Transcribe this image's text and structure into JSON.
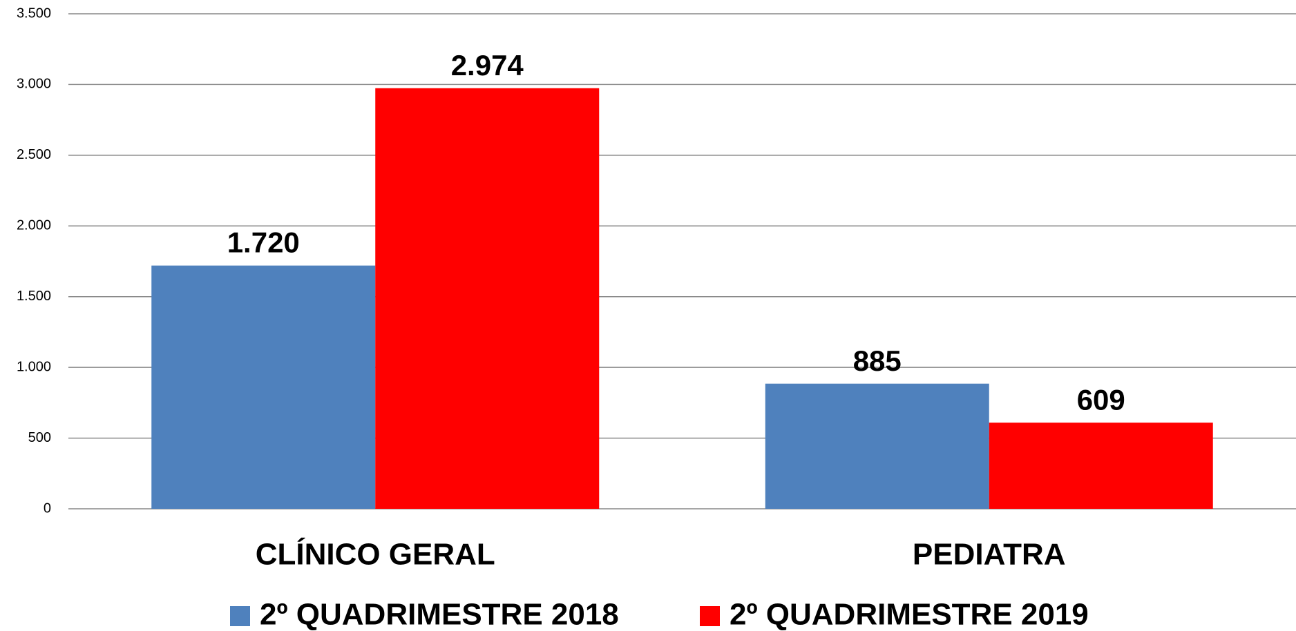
{
  "chart_data": {
    "type": "bar",
    "categories": [
      "CLÍNICO GERAL",
      "PEDIATRA"
    ],
    "series": [
      {
        "name": "2º QUADRIMESTRE 2018",
        "color": "#4f81bd",
        "values": [
          1720,
          885
        ],
        "value_labels": [
          "1.720",
          "885"
        ]
      },
      {
        "name": "2º QUADRIMESTRE 2019",
        "color": "#ff0000",
        "values": [
          2974,
          609
        ],
        "value_labels": [
          "2.974",
          "609"
        ]
      }
    ],
    "ylim": [
      0,
      3500
    ],
    "yticks": [
      {
        "value": 0,
        "label": "0"
      },
      {
        "value": 500,
        "label": "500"
      },
      {
        "value": 1000,
        "label": "1.000"
      },
      {
        "value": 1500,
        "label": "1.500"
      },
      {
        "value": 2000,
        "label": "2.000"
      },
      {
        "value": 2500,
        "label": "2.500"
      },
      {
        "value": 3000,
        "label": "3.000"
      },
      {
        "value": 3500,
        "label": "3.500"
      }
    ],
    "grid": true,
    "legend": "bottom"
  }
}
